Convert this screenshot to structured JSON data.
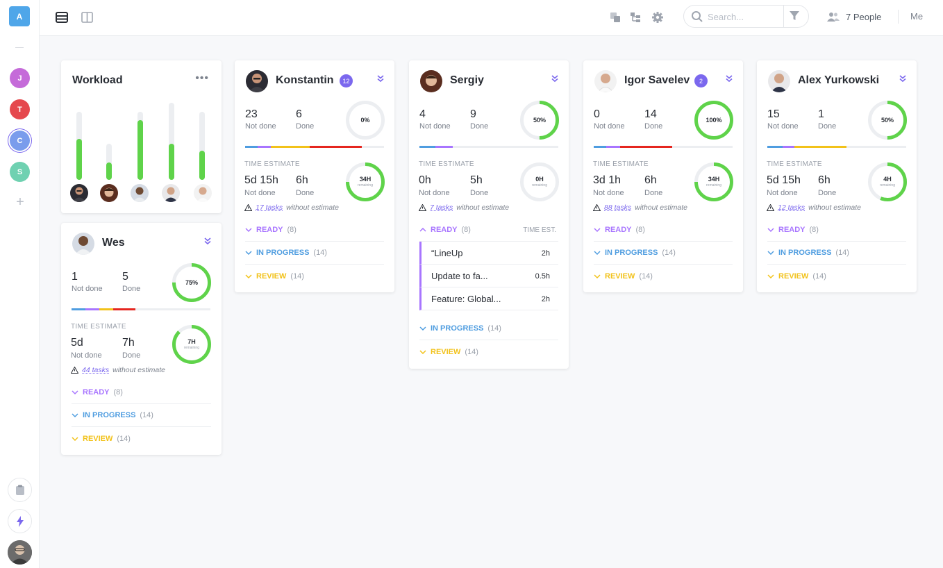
{
  "rail": {
    "workspace": "A",
    "avatars": [
      {
        "letter": "J",
        "color": "#c56bd9"
      },
      {
        "letter": "T",
        "color": "#e5484d"
      },
      {
        "letter": "C",
        "color": "#7a9cec"
      },
      {
        "letter": "S",
        "color": "#6fd1b1"
      }
    ]
  },
  "topbar": {
    "search_placeholder": "Search...",
    "people": "7 People",
    "me": "Me"
  },
  "workload": {
    "title": "Workload",
    "bars": [
      {
        "track": 0.75,
        "fill": 0.45
      },
      {
        "track": 0.4,
        "fill": 0.19
      },
      {
        "track": 0.75,
        "fill": 0.66
      },
      {
        "track": 0.85,
        "fill": 0.4
      },
      {
        "track": 0.75,
        "fill": 0.32
      }
    ]
  },
  "labels": {
    "not_done": "Not done",
    "done": "Done",
    "time_estimate": "TIME ESTIMATE",
    "without_estimate": "without estimate",
    "remaining": "remaining",
    "time_est": "TIME EST."
  },
  "people": [
    {
      "name": "Konstantin",
      "badge": "12",
      "not_done": "23",
      "done": "6",
      "pct": "0%",
      "est_not_done": "5d 15h",
      "est_done": "6h",
      "remaining": "34H",
      "tasks_link": "17 tasks",
      "statuses": [
        {
          "label": "READY",
          "count": "(8)",
          "color": "#a875ff"
        },
        {
          "label": "IN PROGRESS",
          "count": "(14)",
          "color": "#4f9de0"
        },
        {
          "label": "REVIEW",
          "count": "(14)",
          "color": "#f2c21a"
        }
      ]
    },
    {
      "name": "Sergiy",
      "not_done": "4",
      "done": "9",
      "pct": "50%",
      "est_not_done": "0h",
      "est_done": "5h",
      "remaining": "0H",
      "tasks_link": "7 tasks",
      "tasks": [
        {
          "name": "“LineUp",
          "time": "2h"
        },
        {
          "name": "Update to fa...",
          "time": "0.5h"
        },
        {
          "name": "Feature: Global...",
          "time": "2h"
        }
      ],
      "statuses": [
        {
          "label": "READY",
          "count": "(8)",
          "color": "#a875ff"
        },
        {
          "label": "IN PROGRESS",
          "count": "(14)",
          "color": "#4f9de0"
        },
        {
          "label": "REVIEW",
          "count": "(14)",
          "color": "#f2c21a"
        }
      ]
    },
    {
      "name": "Igor Savelev",
      "badge": "2",
      "not_done": "0",
      "done": "14",
      "pct": "100%",
      "est_not_done": "3d 1h",
      "est_done": "6h",
      "remaining": "34H",
      "tasks_link": "88 tasks",
      "statuses": [
        {
          "label": "READY",
          "count": "(8)",
          "color": "#a875ff"
        },
        {
          "label": "IN PROGRESS",
          "count": "(14)",
          "color": "#4f9de0"
        },
        {
          "label": "REVIEW",
          "count": "(14)",
          "color": "#f2c21a"
        }
      ]
    },
    {
      "name": "Alex Yurkowski",
      "not_done": "15",
      "done": "1",
      "pct": "50%",
      "est_not_done": "5d 15h",
      "est_done": "6h",
      "remaining": "4H",
      "tasks_link": "12 tasks",
      "statuses": [
        {
          "label": "READY",
          "count": "(8)",
          "color": "#a875ff"
        },
        {
          "label": "IN PROGRESS",
          "count": "(14)",
          "color": "#4f9de0"
        },
        {
          "label": "REVIEW",
          "count": "(14)",
          "color": "#f2c21a"
        }
      ]
    },
    {
      "name": "Wes",
      "not_done": "1",
      "done": "5",
      "pct": "75%",
      "est_not_done": "5d",
      "est_done": "7h",
      "remaining": "7H",
      "tasks_link": "44 tasks",
      "statuses": [
        {
          "label": "READY",
          "count": "(8)",
          "color": "#a875ff"
        },
        {
          "label": "IN PROGRESS",
          "count": "(14)",
          "color": "#4f9de0"
        },
        {
          "label": "REVIEW",
          "count": "(14)",
          "color": "#f2c21a"
        }
      ]
    }
  ]
}
